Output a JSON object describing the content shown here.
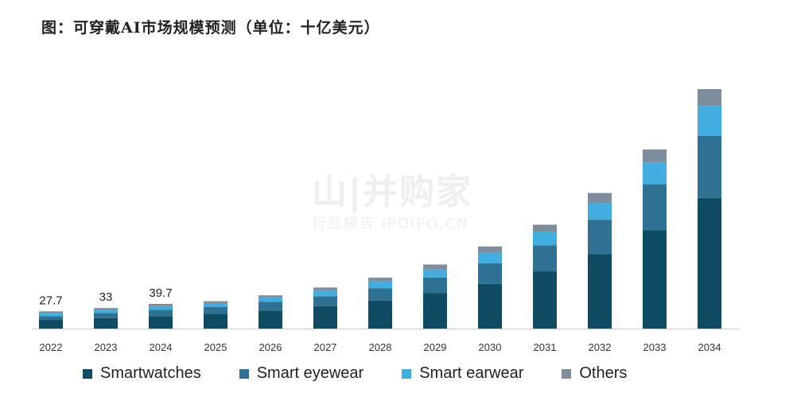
{
  "title": "图：可穿戴AI市场规模预测（单位：十亿美元）",
  "watermark": {
    "main": "山|并购家",
    "sub": "行业报告 IPOIPO.CN"
  },
  "chart_data": {
    "type": "bar",
    "stacked": true,
    "categories": [
      "2022",
      "2023",
      "2024",
      "2025",
      "2026",
      "2027",
      "2028",
      "2029",
      "2030",
      "2031",
      "2032",
      "2033",
      "2034"
    ],
    "series": [
      {
        "name": "Smartwatches",
        "color": "#0f4c64",
        "values": [
          14,
          17,
          20,
          24,
          29,
          36,
          45,
          57,
          72,
          92,
          120,
          158,
          210
        ]
      },
      {
        "name": "Smart eyewear",
        "color": "#2f7192",
        "values": [
          6,
          8,
          10,
          11,
          14,
          16,
          20,
          25,
          33,
          42,
          55,
          74,
          100
        ]
      },
      {
        "name": "Smart earwear",
        "color": "#42aee0",
        "values": [
          4.5,
          5,
          6,
          6,
          7,
          9,
          11,
          13,
          17,
          21,
          27,
          35,
          48
        ]
      },
      {
        "name": "Others",
        "color": "#7d8d9b",
        "values": [
          3.2,
          3,
          3.7,
          3,
          3.5,
          5,
          6,
          8,
          10,
          12,
          16,
          21,
          27
        ]
      }
    ],
    "data_labels": [
      "27.7",
      "33",
      "39.7",
      "",
      "",
      "",
      "",
      "",
      "",
      "",
      "",
      "",
      ""
    ],
    "ylim": [
      0,
      400
    ],
    "grid": false,
    "legend_position": "bottom"
  }
}
